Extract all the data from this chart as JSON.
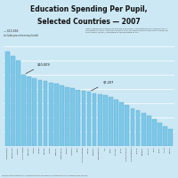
{
  "title_line1": "Education Spending Per Pupil,",
  "title_line2": "Selected Countries — 2007",
  "title_fontsize": 5.5,
  "bar_color": "#7dc8e8",
  "bar_edge_color": "#5aaad0",
  "background_color": "#cce8f4",
  "note_text": "Note: Spending represents private and public expenditures for elementary e\neducation in 2007, the most recent year for which data is available except for\nand Turkey (2006.) Spending is represented in 20...",
  "source_text": "for Education Statistics, Organisation for Economic Co-Operation and Development (OECD)",
  "legend_label1": "$13,166",
  "legend_note1": "includes pre-elementary funds)",
  "annotation1": "$10,009",
  "annotation2": "$7,207",
  "countries": [
    "Luxembourg",
    "Switzerland",
    "Norway",
    "United States",
    "Denmark",
    "Austria",
    "Iceland",
    "Sweden",
    "Ireland",
    "Belgium",
    "Netherlands",
    "Finland",
    "Australia",
    "Japan",
    "United Kingdom",
    "France",
    "Germany",
    "New Zealand",
    "Italy",
    "Spain",
    "Portugal",
    "Korea",
    "Czech Republic",
    "Slovak Republic",
    "Poland",
    "Hungary",
    "Estonia",
    "Chile",
    "Brazil",
    "Turkey",
    "Mexico"
  ],
  "values": [
    13200,
    12600,
    12000,
    10009,
    9700,
    9500,
    9300,
    9100,
    8900,
    8700,
    8500,
    8300,
    8100,
    7900,
    7700,
    7600,
    7400,
    7200,
    7100,
    6900,
    6500,
    6100,
    5700,
    5300,
    5000,
    4600,
    4300,
    3800,
    3300,
    2800,
    2400
  ],
  "ylim_max": 15000,
  "n_bars": 31
}
